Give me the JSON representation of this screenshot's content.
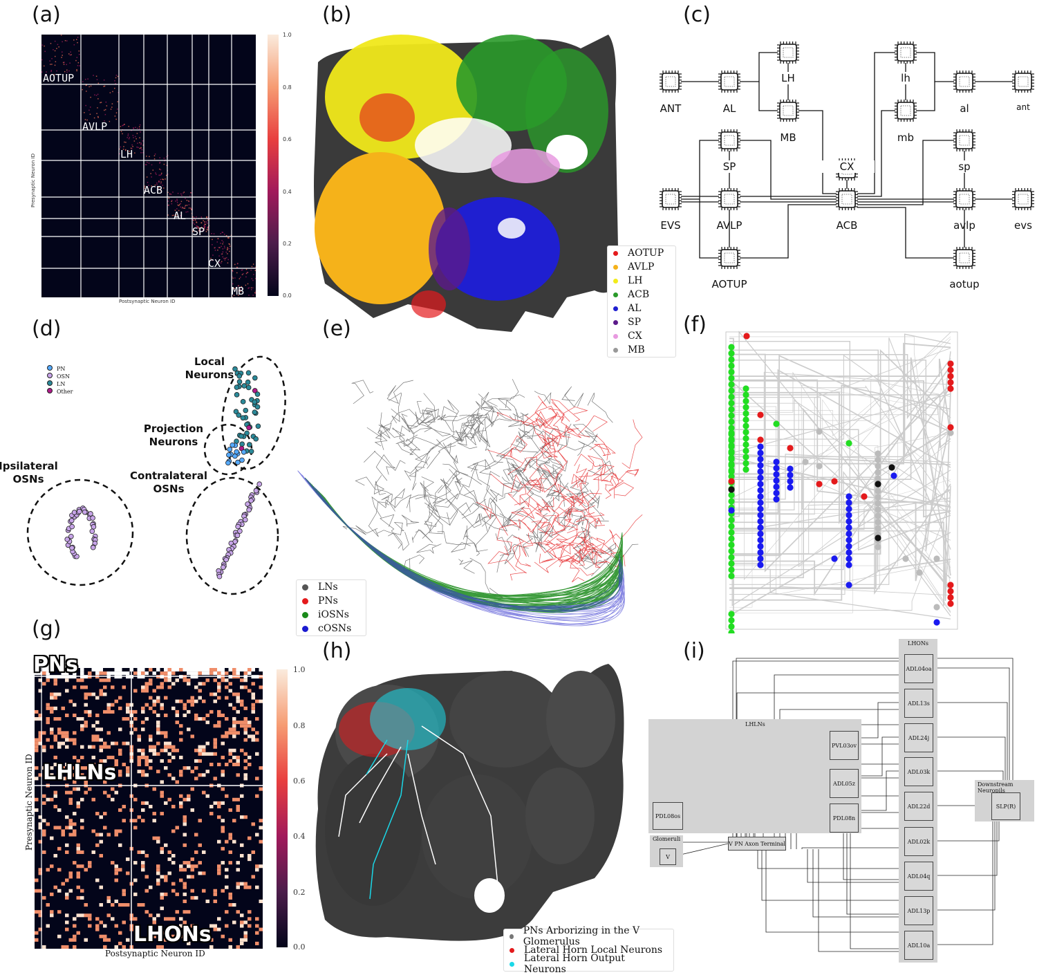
{
  "panels": {
    "a": "(a)",
    "b": "(b)",
    "c": "(c)",
    "d": "(d)",
    "e": "(e)",
    "f": "(f)",
    "g": "(g)",
    "h": "(h)",
    "i": "(i)"
  },
  "panel_a": {
    "regions": [
      "AOTUP",
      "AVLP",
      "LH",
      "ACB",
      "AL",
      "SP",
      "CX",
      "MB"
    ],
    "ylabel": "Presynaptic Neuron ID",
    "xlabel": "Postsynaptic Neuron ID",
    "cbar_ticks": [
      "1.0",
      "0.8",
      "0.6",
      "0.4",
      "0.2",
      "0.0"
    ]
  },
  "panel_b": {
    "legend": [
      {
        "label": "AOTUP",
        "color": "#e41a1c"
      },
      {
        "label": "AVLP",
        "color": "#f5b21a"
      },
      {
        "label": "LH",
        "color": "#f2ec1a"
      },
      {
        "label": "ACB",
        "color": "#2a9a2a"
      },
      {
        "label": "AL",
        "color": "#1f1fd0"
      },
      {
        "label": "SP",
        "color": "#5b1a8a"
      },
      {
        "label": "CX",
        "color": "#e89ae0"
      },
      {
        "label": "MB",
        "color": "#999999"
      }
    ]
  },
  "panel_c": {
    "nodes": {
      "ANT": "ANT",
      "AL": "AL",
      "LH": "LH",
      "MB": "MB",
      "lh": "lh",
      "mb": "mb",
      "al": "al",
      "ant": "ant",
      "SP": "SP",
      "CX": "CX",
      "sp": "sp",
      "EVS": "EVS",
      "AVLP": "AVLP",
      "ACB": "ACB",
      "avlp": "avlp",
      "evs": "evs",
      "AOTUP": "AOTUP",
      "aotup": "aotup"
    }
  },
  "panel_d": {
    "legend": [
      {
        "label": "PN",
        "color": "#55aaff"
      },
      {
        "label": "OSN",
        "color": "#c7a4e8"
      },
      {
        "label": "LN",
        "color": "#2b8a9a"
      },
      {
        "label": "Other",
        "color": "#b01a8a"
      }
    ],
    "labels": {
      "local": "Local\nNeurons",
      "projection": "Projection\nNeurons",
      "ipsi": "Ipsilateral\nOSNs",
      "contra": "Contralateral\nOSNs"
    }
  },
  "panel_e": {
    "legend": [
      {
        "label": "LNs",
        "color": "#555555"
      },
      {
        "label": "PNs",
        "color": "#e41a1c"
      },
      {
        "label": "iOSNs",
        "color": "#1a8a1a"
      },
      {
        "label": "cOSNs",
        "color": "#1a1ad0"
      }
    ]
  },
  "panel_g": {
    "labels": {
      "pns": "PNs",
      "lhlns": "LHLNs",
      "lhons": "LHONs"
    },
    "ylabel": "Presynaptic Neuron ID",
    "xlabel": "Postsynaptic Neuron ID",
    "cbar_ticks": [
      "1.0",
      "0.8",
      "0.6",
      "0.4",
      "0.2",
      "0.0"
    ]
  },
  "panel_h": {
    "legend": [
      {
        "label": "PNs Arborizing in the V Glomerulus",
        "color": "#777777"
      },
      {
        "label": "Lateral Horn Local Neurons",
        "color": "#e41a1c"
      },
      {
        "label": "Lateral Horn Output Neurons",
        "color": "#1ad8e8"
      }
    ]
  },
  "panel_i": {
    "groups": {
      "lhons": "LHONs",
      "lhlns": "LHLNs",
      "glomeruli": "Glomeruli",
      "downstream": "Downstream Neuropils"
    },
    "lhon_nodes": [
      "ADL04oa",
      "ADL13s",
      "ADL24j",
      "ADL03k",
      "ADL22d",
      "ADL02k",
      "ADL04q",
      "ADL13p",
      "ADL10a"
    ],
    "lhln_nodes": [
      "PVL03ov",
      "ADL05z",
      "PDL08n"
    ],
    "other_nodes": {
      "pdl": "PDL08os",
      "v": "V",
      "axon": "V PN Axon Terminal",
      "slp": "SLP(R)"
    }
  }
}
